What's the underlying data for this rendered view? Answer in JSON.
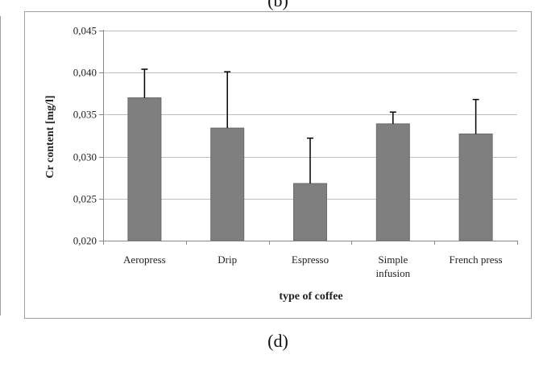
{
  "top_panel_label": "(b)",
  "panel_label": "(d)",
  "colors": {
    "bar": "#7f7f7f",
    "bar_edge": "#6a6a6a",
    "grid": "#bfbfbf",
    "axis": "#888888",
    "error": "#000000",
    "frame": "#9e9e9e"
  },
  "chart_data": {
    "type": "bar",
    "title": "",
    "xlabel": "type of coffee",
    "ylabel": "Cr content [mg/l]",
    "ylim": [
      0.02,
      0.045
    ],
    "yticks": [
      "0,020",
      "0,025",
      "0,030",
      "0,035",
      "0,040",
      "0,045"
    ],
    "grid": true,
    "categories": [
      {
        "lines": [
          "Aeropress"
        ]
      },
      {
        "lines": [
          "Drip"
        ]
      },
      {
        "lines": [
          "Espresso"
        ]
      },
      {
        "lines": [
          "Simple",
          "infusion"
        ]
      },
      {
        "lines": [
          "French press"
        ]
      }
    ],
    "values": [
      0.037,
      0.0334,
      0.0268,
      0.0339,
      0.0327
    ],
    "error_upper": [
      0.0034,
      0.0067,
      0.0054,
      0.0014,
      0.0041
    ]
  }
}
